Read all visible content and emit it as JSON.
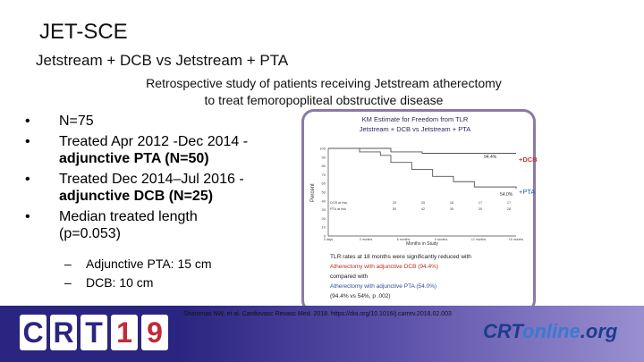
{
  "slide": {
    "title": "JET-SCE",
    "subtitle": "Jetstream + DCB vs Jetstream + PTA",
    "description_line1": "Retrospective study of patients receiving Jetstream atherectomy",
    "description_line2": "to treat femoropopliteal obstructive disease"
  },
  "bullets": [
    {
      "text": "N=75",
      "strong": ""
    },
    {
      "text": "Treated Apr 2012 -Dec 2014 -",
      "strong": "adjunctive PTA (N=50)"
    },
    {
      "text": "Treated Dec 2014–Jul 2016 -",
      "strong": "adjunctive DCB (N=25)"
    },
    {
      "text": "Median treated length",
      "strong": "(p=0.053)"
    }
  ],
  "sub_bullets": [
    "Adjunctive PTA: 15 cm",
    "DCB: 10 cm"
  ],
  "km": {
    "title_line1": "KM Estimate for Freedom from TLR",
    "title_line2": "Jetstream + DCB  vs  Jetstream + PTA",
    "dcb_label": "+DCB",
    "pta_label": "+PTA",
    "dcb_pct": "94.4%",
    "pta_pct": "54.0%",
    "y_axis_label": "Percent",
    "x_axis_label": "Months in Study",
    "y_ticks": [
      "100",
      "90",
      "80",
      "70",
      "60",
      "50",
      "40",
      "30",
      "20",
      "10",
      "0"
    ],
    "x_ticks": [
      "0 days",
      "3 months",
      "6 months",
      "9 months",
      "12 months",
      "15 months"
    ],
    "risk_rows": [
      {
        "label": "DCB at risk",
        "values": [
          "25",
          "25",
          "18",
          "17",
          "17"
        ]
      },
      {
        "label": "PTA at risk",
        "values": [
          "50",
          "42",
          "35",
          "30",
          "28"
        ]
      }
    ],
    "caption_line1": "TLR rates at 18 months were significantly reduced with",
    "caption_line2": "Atherectomy with adjunctive DCB (94.4%)",
    "caption_line3": "compared with",
    "caption_line4": "Atherectomy with adjunctive PTA (54.0%)",
    "caption_line5": "(94.4% vs 54%, p .002)"
  },
  "footer": {
    "citation": "Shammas NW, et al. Cardiovasc Revasc Med. 2018. https://doi.org/10.1016/j.carrev.2018.02.003",
    "crt_chars": [
      "C",
      "R",
      "T",
      "1",
      "9"
    ],
    "logo_crt": "CRT",
    "logo_online": "online",
    "logo_org": ".org"
  },
  "chart_data": {
    "type": "line",
    "title": "KM Estimate for Freedom from TLR",
    "xlabel": "Months in Study",
    "ylabel": "Percent",
    "ylim": [
      0,
      100
    ],
    "xlim": [
      0,
      18
    ],
    "series": [
      {
        "name": "+DCB",
        "x": [
          0,
          4,
          6,
          9,
          12,
          18
        ],
        "y": [
          100,
          100,
          96,
          94.4,
          94.4,
          94.4
        ]
      },
      {
        "name": "+PTA",
        "x": [
          0,
          3,
          5,
          6,
          8,
          10,
          12,
          14,
          18
        ],
        "y": [
          100,
          96,
          92,
          84,
          76,
          68,
          62,
          56,
          54
        ]
      }
    ]
  }
}
